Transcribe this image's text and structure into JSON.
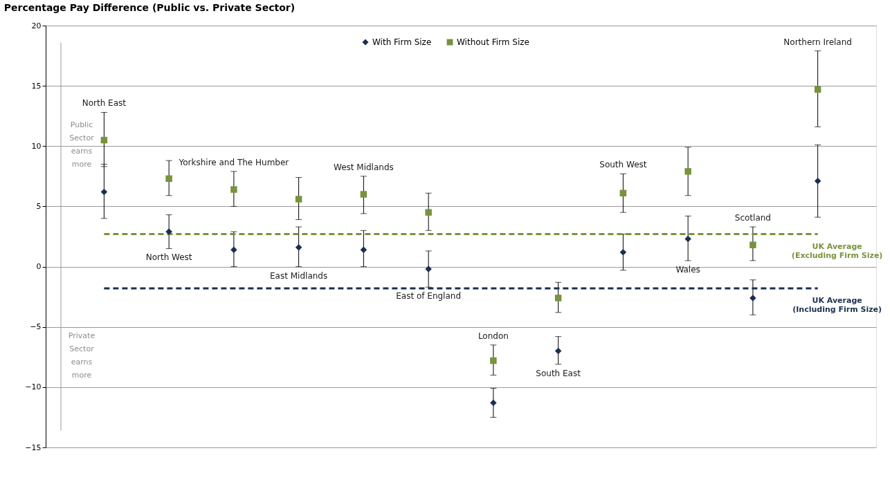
{
  "chart_data": {
    "type": "scatter",
    "title": "Percentage Pay Difference (Public vs. Private Sector)",
    "categories": [
      "North East",
      "North West",
      "Yorkshire and The Humber",
      "East Midlands",
      "West Midlands",
      "East of England",
      "London",
      "South East",
      "South West",
      "Wales",
      "Scotland",
      "Northern Ireland"
    ],
    "series": [
      {
        "name": "With Firm Size",
        "color": "#1b2f4e",
        "marker": "diamond",
        "values": [
          6.2,
          2.9,
          1.4,
          1.6,
          1.4,
          -0.2,
          -11.3,
          -7.0,
          1.2,
          2.3,
          -2.6,
          7.1
        ],
        "errors": [
          [
            4.0,
            8.5
          ],
          [
            1.5,
            4.3
          ],
          [
            0.0,
            2.9
          ],
          [
            0.0,
            3.3
          ],
          [
            0.0,
            3.0
          ],
          [
            -1.7,
            1.3
          ],
          [
            -12.5,
            -10.1
          ],
          [
            -8.1,
            -5.8
          ],
          [
            -0.3,
            2.7
          ],
          [
            0.5,
            4.2
          ],
          [
            -4.0,
            -1.1
          ],
          [
            4.1,
            10.1
          ]
        ]
      },
      {
        "name": "Without Firm Size",
        "color": "#77933c",
        "marker": "square",
        "values": [
          10.5,
          7.3,
          6.4,
          5.6,
          6.0,
          4.5,
          -7.8,
          -2.6,
          6.1,
          7.9,
          1.8,
          14.7
        ],
        "errors": [
          [
            8.3,
            12.8
          ],
          [
            5.9,
            8.8
          ],
          [
            5.0,
            7.9
          ],
          [
            3.9,
            7.4
          ],
          [
            4.4,
            7.5
          ],
          [
            3.0,
            6.1
          ],
          [
            -9.0,
            -6.5
          ],
          [
            -3.8,
            -1.3
          ],
          [
            4.5,
            7.7
          ],
          [
            5.9,
            9.9
          ],
          [
            0.5,
            3.3
          ],
          [
            11.6,
            17.9
          ]
        ]
      }
    ],
    "ylim": [
      -15,
      20
    ],
    "yticks": [
      -15,
      -10,
      -5,
      0,
      5,
      10,
      15,
      20
    ],
    "grid": "y",
    "legend": "top",
    "tick_labels": "y",
    "ref_lines": [
      {
        "axis": "y",
        "value": 2.7,
        "label": "UK Average\n(Excluding Firm Size)",
        "color": "#77933c",
        "line_style": "dashed"
      },
      {
        "axis": "y",
        "value": -1.8,
        "label": "UK Average\n(Including Firm Size)",
        "color": "#1b2f4e",
        "line_style": "dashed"
      }
    ],
    "annotations": [
      "Public\nSector\nearns\nmore",
      "Private\nSector\nearns\nmore"
    ]
  }
}
